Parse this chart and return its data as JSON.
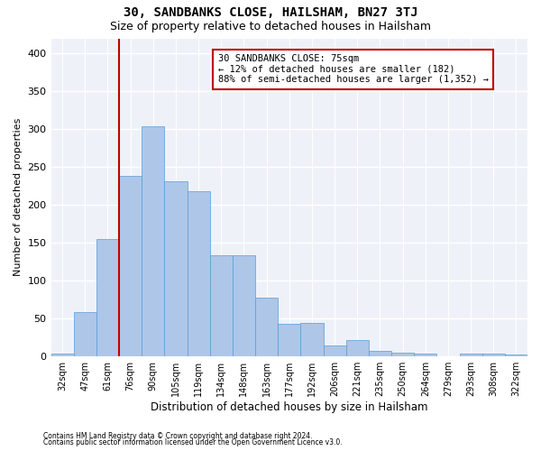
{
  "title": "30, SANDBANKS CLOSE, HAILSHAM, BN27 3TJ",
  "subtitle": "Size of property relative to detached houses in Hailsham",
  "xlabel": "Distribution of detached houses by size in Hailsham",
  "ylabel": "Number of detached properties",
  "categories": [
    "32sqm",
    "47sqm",
    "61sqm",
    "76sqm",
    "90sqm",
    "105sqm",
    "119sqm",
    "134sqm",
    "148sqm",
    "163sqm",
    "177sqm",
    "192sqm",
    "206sqm",
    "221sqm",
    "235sqm",
    "250sqm",
    "264sqm",
    "279sqm",
    "293sqm",
    "308sqm",
    "322sqm"
  ],
  "values": [
    3,
    58,
    155,
    238,
    304,
    231,
    218,
    133,
    133,
    77,
    43,
    44,
    14,
    21,
    7,
    4,
    3,
    0,
    3,
    3,
    2
  ],
  "bar_color": "#aec6e8",
  "bar_edge_color": "#5b9bd5",
  "property_line_color": "#c00000",
  "annotation_text": "30 SANDBANKS CLOSE: 75sqm\n← 12% of detached houses are smaller (182)\n88% of semi-detached houses are larger (1,352) →",
  "annotation_box_color": "#ffffff",
  "annotation_box_edge_color": "#c00000",
  "footer_line1": "Contains HM Land Registry data © Crown copyright and database right 2024.",
  "footer_line2": "Contains public sector information licensed under the Open Government Licence v3.0.",
  "bg_color": "#ffffff",
  "plot_bg_color": "#eef2f8",
  "ylim": [
    0,
    420
  ],
  "yticks": [
    0,
    50,
    100,
    150,
    200,
    250,
    300,
    350,
    400
  ],
  "grid_color": "#ffffff",
  "title_fontsize": 10,
  "subtitle_fontsize": 9,
  "property_line_x": 3
}
